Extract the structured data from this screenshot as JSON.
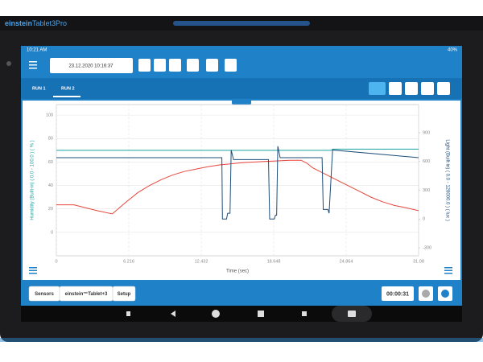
{
  "header": {
    "brand_prefix": "einstein",
    "brand_suffix": "Tablet3Pro"
  },
  "status": {
    "time": "10:21 AM",
    "battery": "40%"
  },
  "toolbar": {
    "date": "23.12.2020 10:16:37"
  },
  "tabs": [
    "RUN 1",
    "RUN 2"
  ],
  "chart_data": {
    "type": "line",
    "x_label": "Time (sec)",
    "y_label": "Humidity (Built-in) ( 0.0 - 100.0 ) ( % )",
    "y2_label": "Light (Built-in) ( 0.0 - 128000.0 ) ( lux )",
    "xlim": [
      0,
      31.08
    ],
    "xticks": [
      0,
      6.216,
      12.432,
      18.648,
      24.864,
      31.08
    ],
    "ylim": [
      -20,
      109
    ],
    "yticks": [
      0,
      20,
      40,
      60,
      80,
      100
    ],
    "y2lim": [
      -384,
      1194
    ],
    "y2ticks": [
      -300,
      0,
      300,
      600,
      900
    ],
    "grid": true,
    "series": [
      {
        "color": "#e8453c",
        "x": [
          0,
          1.5,
          2.5,
          3.5,
          4.8,
          6,
          7,
          8,
          9,
          10,
          11,
          12,
          13,
          14,
          15,
          16,
          17,
          18,
          19,
          20,
          21,
          21.5,
          22,
          23,
          24,
          25,
          26,
          27,
          28,
          29,
          30,
          31.08
        ],
        "values": [
          23.5,
          23.5,
          21,
          18.5,
          15.8,
          26,
          34,
          40,
          45,
          49,
          52,
          54,
          56,
          57.5,
          58.5,
          59.5,
          60,
          60.5,
          61,
          61.5,
          61.5,
          59,
          55,
          50,
          45,
          40,
          35,
          30,
          26,
          23,
          21,
          18.5
        ]
      },
      {
        "color": "#1aa3a3",
        "x": [
          0,
          23.6,
          23.7,
          31.08
        ],
        "values": [
          70,
          70,
          71,
          71
        ]
      },
      {
        "color": "#1d4e7a",
        "axis": "y2",
        "x": [
          0,
          14.2,
          14.25,
          14.6,
          14.7,
          14.9,
          15.0,
          15.2,
          18.2,
          18.3,
          18.7,
          18.8,
          18.9,
          19.0,
          19.2,
          22.8,
          22.9,
          23.3,
          23.4,
          23.6,
          23.7,
          31.08
        ],
        "values": [
          640,
          640,
          0,
          0,
          60,
          60,
          720,
          620,
          620,
          0,
          0,
          40,
          40,
          760,
          640,
          640,
          100,
          100,
          60,
          500,
          720,
          640
        ]
      }
    ]
  },
  "bottom": {
    "buttons": [
      "Sensors",
      "einstein™Tablet+3",
      "Setup"
    ],
    "timer": "00:00:31"
  }
}
